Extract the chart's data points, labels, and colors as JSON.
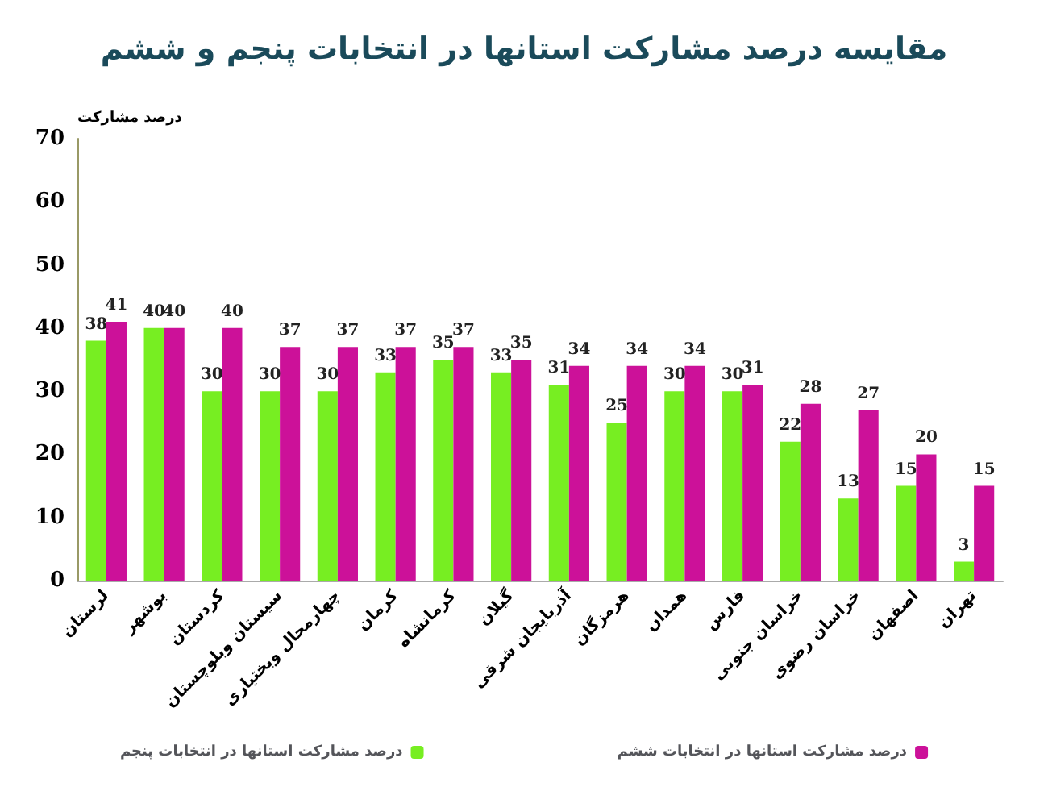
{
  "chart_data": {
    "type": "bar",
    "title": "مقایسه درصد مشارکت استانها در انتخابات پنجم و ششم",
    "ylabel": "درصد مشارکت",
    "categories": [
      "لرستان",
      "بوشهر",
      "کردستان",
      "سیستان وبلوچستان",
      "چهارمحال وبختیاری",
      "کرمان",
      "کرمانشاه",
      "گیلان",
      "آذربایجان شرقی",
      "هرمزگان",
      "همدان",
      "فارس",
      "خراسان جنوبی",
      "خراسان رضوی",
      "اصفهان",
      "تهران"
    ],
    "series": [
      {
        "name": "درصد مشارکت استانها در انتخابات پنجم",
        "color": "#77ee22",
        "values": [
          38,
          40,
          30,
          30,
          30,
          33,
          35,
          33,
          31,
          25,
          30,
          30,
          22,
          13,
          15,
          3
        ]
      },
      {
        "name": "درصد مشارکت استانها در انتخابات ششم",
        "color": "#cc1199",
        "values": [
          41,
          40,
          40,
          37,
          37,
          37,
          37,
          35,
          34,
          34,
          34,
          31,
          28,
          27,
          20,
          15
        ]
      }
    ],
    "ylim": [
      0,
      70
    ],
    "yticks": [
      0,
      10,
      20,
      30,
      40,
      50,
      60,
      70
    ],
    "grid": false,
    "legend": "bottom",
    "data_labels": true
  }
}
